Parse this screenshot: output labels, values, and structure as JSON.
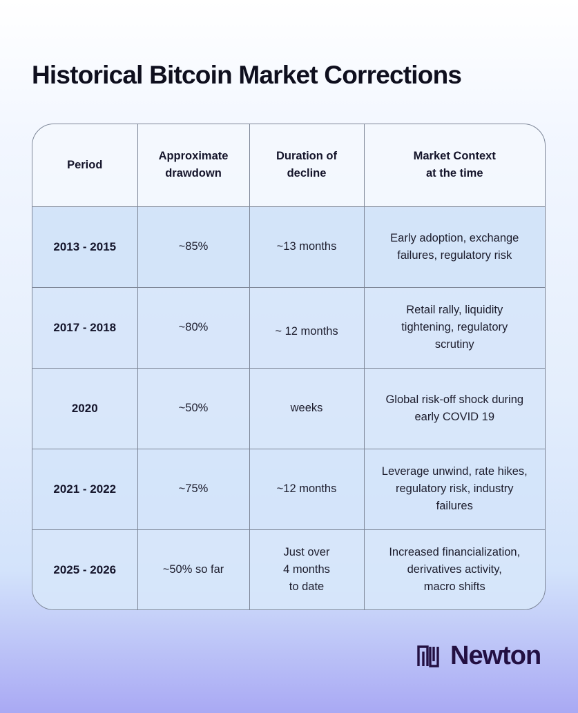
{
  "title": "Historical Bitcoin Market Corrections",
  "table": {
    "headers": [
      "Period",
      "Approximate\ndrawdown",
      "Duration of\ndecline",
      "Market Context\nat the time"
    ],
    "rows": [
      {
        "period": "2013 - 2015",
        "drawdown": "~85%",
        "duration": "~13 months",
        "context": "Early adoption, exchange\nfailures, regulatory risk"
      },
      {
        "period": "2017 - 2018",
        "drawdown": "~80%",
        "duration": "~ 12 months",
        "context": "Retail rally, liquidity\ntightening, regulatory\nscrutiny"
      },
      {
        "period": "2020",
        "drawdown": "~50%",
        "duration": "weeks",
        "context": "Global risk-off shock during\nearly COVID 19"
      },
      {
        "period": "2021 - 2022",
        "drawdown": "~75%",
        "duration": "~12 months",
        "context": "Leverage unwind, rate hikes,\nregulatory risk,  industry\nfailures"
      },
      {
        "period": "2025 - 2026",
        "drawdown": "~50% so far",
        "duration": "Just over\n4 months\nto date",
        "context": "Increased financialization,\nderivatives activity,\nmacro shifts"
      }
    ]
  },
  "brand": {
    "name": "Newton",
    "icon": "newton-logo-icon",
    "color": "#231042"
  }
}
